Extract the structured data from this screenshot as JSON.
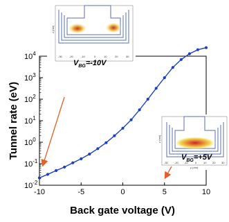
{
  "chart_data": {
    "type": "line",
    "xlabel": "Back gate voltage (V)",
    "ylabel": "Tunnel rate (eV)",
    "xlim": [
      -10,
      10
    ],
    "ylim_log10": [
      -2,
      4
    ],
    "yscale": "log",
    "x_ticks": [
      "-10",
      "-5",
      "0",
      "5",
      "10"
    ],
    "y_ticks": [
      {
        "base": "10",
        "exp": "-2"
      },
      {
        "base": "10",
        "exp": "-1"
      },
      {
        "base": "10",
        "exp": "0"
      },
      {
        "base": "10",
        "exp": "1"
      },
      {
        "base": "10",
        "exp": "2"
      },
      {
        "base": "10",
        "exp": "3"
      },
      {
        "base": "10",
        "exp": "4"
      }
    ],
    "series": [
      {
        "color": "#1f3fbf",
        "x": [
          -10,
          -9,
          -8,
          -7,
          -6,
          -5,
          -4,
          -3,
          -2,
          -1,
          0,
          1,
          2,
          3,
          4,
          5,
          6,
          7,
          8,
          9,
          10
        ],
        "y": [
          0.022,
          0.032,
          0.048,
          0.07,
          0.11,
          0.17,
          0.28,
          0.5,
          0.95,
          2.0,
          4.5,
          11,
          32,
          100,
          320,
          1000,
          3000,
          7000,
          13000,
          20000,
          25000
        ]
      }
    ],
    "grid": false,
    "annotations": [
      {
        "label_text": "=-10V",
        "label_prefix": "V",
        "label_sub": "BG",
        "points_to_x": -10
      },
      {
        "label_text": "=+5V",
        "label_prefix": "V",
        "label_sub": "BG",
        "points_to_x": 5
      }
    ]
  },
  "insets": {
    "top": {
      "label_prefix": "V",
      "label_sub": "BG",
      "label_value": "=-10V",
      "x_axis": "y (nm)",
      "y_axis": "z (nm)"
    },
    "bottom": {
      "label_prefix": "V",
      "label_sub": "BG",
      "label_value": "=+5V",
      "x_axis": "y (nm)",
      "y_axis": "z (nm)"
    }
  },
  "colors": {
    "line": "#1f3fbf",
    "arrow": "#e0602a",
    "inset_frame": "#5a6fb0"
  }
}
